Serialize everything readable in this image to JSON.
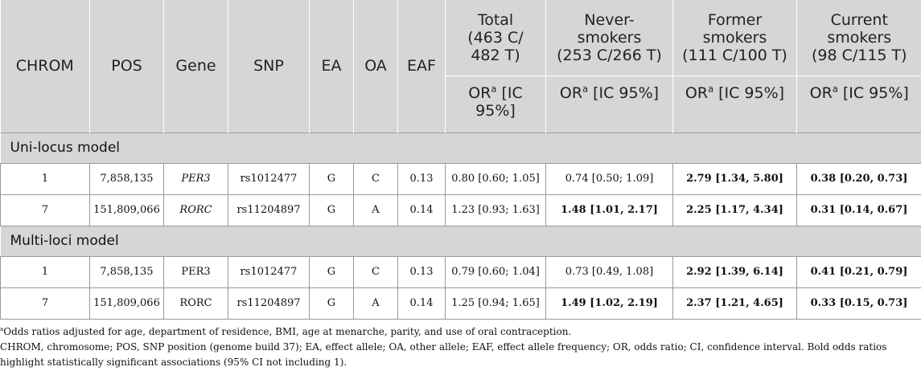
{
  "header": {
    "chrom": "CHROM",
    "pos": "POS",
    "gene": "Gene",
    "snp": "SNP",
    "ea": "EA",
    "oa": "OA",
    "eaf": "EAF",
    "groups": [
      {
        "line1": "Total",
        "line2": "(463 C/",
        "line3": "482 T)",
        "sub1": "OR",
        "sub_sup": "a",
        "sub2": " [IC 95%]"
      },
      {
        "line1": "Never-",
        "line2": "smokers",
        "line3": "(253 C/266 T)",
        "sub1": "OR",
        "sub_sup": "a",
        "sub2": " [IC 95%]"
      },
      {
        "line1": "Former",
        "line2": "smokers",
        "line3": "(111 C/100 T)",
        "sub1": "OR",
        "sub_sup": "a",
        "sub2": " [IC 95%]"
      },
      {
        "line1": "Current",
        "line2": "smokers",
        "line3": "(98 C/115 T)",
        "sub1": "OR",
        "sub_sup": "a",
        "sub2": " [IC 95%]"
      }
    ]
  },
  "sections": [
    {
      "title": "Uni-locus model",
      "rows": [
        {
          "chrom": "1",
          "pos": "7,858,135",
          "gene": "PER3",
          "snp": "rs1012477",
          "ea": "G",
          "oa": "C",
          "eaf": "0.13",
          "total": "0.80 [0.60; 1.05]",
          "never": "0.74 [0.50; 1.09]",
          "former": "2.79 [1.34, 5.80]",
          "current": "0.38 [0.20, 0.73]"
        },
        {
          "chrom": "7",
          "pos": "151,809,066",
          "gene": "RORC",
          "snp": "rs11204897",
          "ea": "G",
          "oa": "A",
          "eaf": "0.14",
          "total": "1.23 [0.93; 1.63]",
          "never": "1.48 [1.01, 2.17]",
          "former": "2.25 [1.17, 4.34]",
          "current": "0.31 [0.14, 0.67]"
        }
      ]
    },
    {
      "title": "Multi-loci model",
      "rows": [
        {
          "chrom": "1",
          "pos": "7,858,135",
          "gene": "PER3",
          "snp": "rs1012477",
          "ea": "G",
          "oa": "C",
          "eaf": "0.13",
          "total": "0.79 [0.60; 1.04]",
          "never": "0.73 [0.49, 1.08]",
          "former": "2.92 [1.39, 6.14]",
          "current": "0.41 [0.21, 0.79]"
        },
        {
          "chrom": "7",
          "pos": "151,809,066",
          "gene": "RORC",
          "snp": "rs11204897",
          "ea": "G",
          "oa": "A",
          "eaf": "0.14",
          "total": "1.25 [0.94; 1.65]",
          "never": "1.49 [1.02, 2.19]",
          "former": "2.37 [1.21, 4.65]",
          "current": "0.33 [0.15, 0.73]"
        }
      ]
    }
  ],
  "notes": {
    "footnote_mark": "a",
    "footnote": "Odds ratios adjusted for age, department of residence, BMI, age at menarche, parity, and use of oral contraception.",
    "abbreviations": "CHROM, chromosome; POS, SNP position (genome build 37); EA, effect allele; OA, other allele; EAF, effect allele frequency; OR, odds ratio; CI, confidence interval. Bold odds ratios highlight statistically significant associations (95% CI not including 1)."
  }
}
